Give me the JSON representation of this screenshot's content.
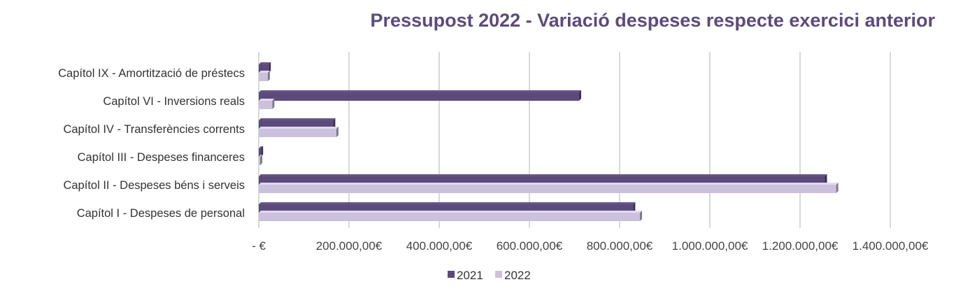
{
  "chart_data": {
    "type": "bar",
    "orientation": "horizontal",
    "title": "Pressupost 2022 - Variació despeses respecte exercici anterior",
    "categories": [
      "Capítol I - Despeses de personal",
      "Capítol II - Despeses béns i serveis",
      "Capítol III - Despeses financeres",
      "Capítol IV - Transferències corrents",
      "Capítol VI - Inversions reals",
      "Capítol IX - Amortització de préstecs"
    ],
    "series": [
      {
        "name": "2021",
        "color": "#5b4b7a",
        "values": [
          830000,
          1255000,
          5000,
          165000,
          710000,
          22000
        ]
      },
      {
        "name": "2022",
        "color": "#cbc1dd",
        "values": [
          845000,
          1280000,
          3000,
          172000,
          30000,
          20000
        ]
      }
    ],
    "xlim": [
      0,
      1400000
    ],
    "xticks": [
      0,
      200000,
      400000,
      600000,
      800000,
      1000000,
      1200000,
      1400000
    ],
    "xtick_labels": [
      "-  €",
      "200.000,00€",
      "400.000,00€",
      "600.000,00€",
      "800.000,00€",
      "1.000.000,00€",
      "1.200.000,00€",
      "1.400.000,00€"
    ],
    "xlabel": "",
    "ylabel": "",
    "grid": true,
    "legend": "bottom"
  }
}
